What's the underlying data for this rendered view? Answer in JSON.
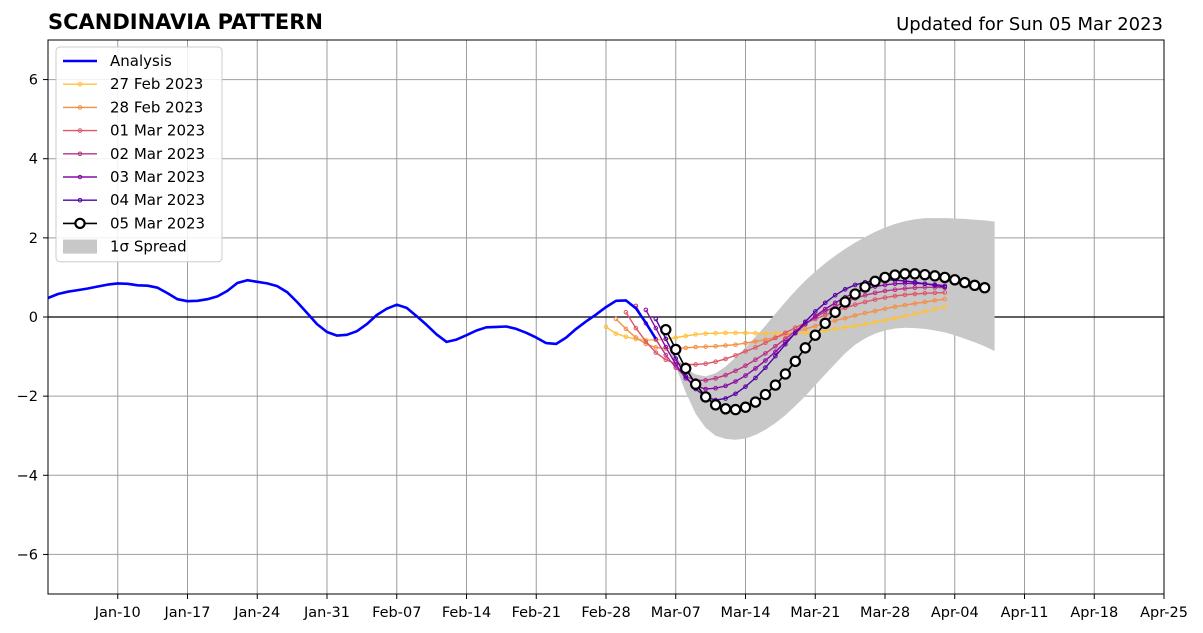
{
  "chart_data": {
    "type": "line",
    "title": "SCANDINAVIA PATTERN",
    "subtitle": "Updated for Sun 05 Mar 2023",
    "xlabel": "",
    "ylabel": "",
    "xlim": [
      "2023-01-03",
      "2023-04-25"
    ],
    "ylim": [
      -7,
      7
    ],
    "grid": true,
    "legend_position": "top-left",
    "x_ticks": [
      "2023-01-10",
      "2023-01-17",
      "2023-01-24",
      "2023-01-31",
      "2023-02-07",
      "2023-02-14",
      "2023-02-21",
      "2023-02-28",
      "2023-03-07",
      "2023-03-14",
      "2023-03-21",
      "2023-03-28",
      "2023-04-04",
      "2023-04-11",
      "2023-04-18",
      "2023-04-25"
    ],
    "x_tick_labels": [
      "Jan-10",
      "Jan-17",
      "Jan-24",
      "Jan-31",
      "Feb-07",
      "Feb-14",
      "Feb-21",
      "Feb-28",
      "Mar-07",
      "Mar-14",
      "Mar-21",
      "Mar-28",
      "Apr-04",
      "Apr-11",
      "Apr-18",
      "Apr-25"
    ],
    "y_ticks": [
      -6,
      -4,
      -2,
      0,
      2,
      4,
      6
    ],
    "y_tick_labels": [
      "−6",
      "−4",
      "−2",
      "0",
      "2",
      "4",
      "6"
    ],
    "analysis": {
      "name": "Analysis",
      "color": "#0000ff",
      "x": [
        "2023-01-03",
        "2023-01-04",
        "2023-01-05",
        "2023-01-06",
        "2023-01-07",
        "2023-01-08",
        "2023-01-09",
        "2023-01-10",
        "2023-01-11",
        "2023-01-12",
        "2023-01-13",
        "2023-01-14",
        "2023-01-15",
        "2023-01-16",
        "2023-01-17",
        "2023-01-18",
        "2023-01-19",
        "2023-01-20",
        "2023-01-21",
        "2023-01-22",
        "2023-01-23",
        "2023-01-24",
        "2023-01-25",
        "2023-01-26",
        "2023-01-27",
        "2023-01-28",
        "2023-01-29",
        "2023-01-30",
        "2023-01-31",
        "2023-02-01",
        "2023-02-02",
        "2023-02-03",
        "2023-02-04",
        "2023-02-05",
        "2023-02-06",
        "2023-02-07",
        "2023-02-08",
        "2023-02-09",
        "2023-02-10",
        "2023-02-11",
        "2023-02-12",
        "2023-02-13",
        "2023-02-14",
        "2023-02-15",
        "2023-02-16",
        "2023-02-17",
        "2023-02-18",
        "2023-02-19",
        "2023-02-20",
        "2023-02-21",
        "2023-02-22",
        "2023-02-23",
        "2023-02-24",
        "2023-02-25",
        "2023-02-26",
        "2023-02-27",
        "2023-02-28",
        "2023-03-01",
        "2023-03-02",
        "2023-03-03",
        "2023-03-04",
        "2023-03-05"
      ],
      "values": [
        0.48,
        0.58,
        0.64,
        0.68,
        0.72,
        0.77,
        0.82,
        0.85,
        0.84,
        0.8,
        0.79,
        0.74,
        0.6,
        0.45,
        0.4,
        0.41,
        0.45,
        0.52,
        0.66,
        0.86,
        0.93,
        0.89,
        0.85,
        0.78,
        0.63,
        0.38,
        0.1,
        -0.18,
        -0.38,
        -0.47,
        -0.45,
        -0.36,
        -0.18,
        0.05,
        0.21,
        0.31,
        0.23,
        0.02,
        -0.2,
        -0.44,
        -0.63,
        -0.57,
        -0.46,
        -0.34,
        -0.26,
        -0.25,
        -0.24,
        -0.3,
        -0.4,
        -0.52,
        -0.66,
        -0.68,
        -0.52,
        -0.3,
        -0.11,
        0.06,
        0.25,
        0.41,
        0.42,
        0.22,
        -0.15,
        -0.55
      ]
    },
    "forecasts": [
      {
        "name": "27 Feb 2023",
        "color": "#ffc13b",
        "x_start": "2023-02-28",
        "values": [
          -0.25,
          -0.42,
          -0.5,
          -0.56,
          -0.58,
          -0.58,
          -0.56,
          -0.52,
          -0.48,
          -0.44,
          -0.42,
          -0.41,
          -0.4,
          -0.4,
          -0.4,
          -0.41,
          -0.42,
          -0.42,
          -0.42,
          -0.41,
          -0.4,
          -0.37,
          -0.34,
          -0.3,
          -0.26,
          -0.22,
          -0.18,
          -0.13,
          -0.08,
          -0.03,
          0.02,
          0.08,
          0.14,
          0.2,
          0.25
        ]
      },
      {
        "name": "28 Feb 2023",
        "color": "#f68f46",
        "x_start": "2023-03-01",
        "values": [
          -0.05,
          -0.3,
          -0.52,
          -0.68,
          -0.77,
          -0.8,
          -0.79,
          -0.78,
          -0.76,
          -0.75,
          -0.74,
          -0.72,
          -0.7,
          -0.66,
          -0.62,
          -0.57,
          -0.52,
          -0.45,
          -0.38,
          -0.3,
          -0.23,
          -0.16,
          -0.09,
          -0.03,
          0.04,
          0.1,
          0.15,
          0.21,
          0.26,
          0.3,
          0.34,
          0.38,
          0.42,
          0.45
        ]
      },
      {
        "name": "01 Mar 2023",
        "color": "#de5769",
        "x_start": "2023-03-02",
        "values": [
          0.12,
          -0.28,
          -0.62,
          -0.9,
          -1.08,
          -1.18,
          -1.2,
          -1.2,
          -1.18,
          -1.13,
          -1.06,
          -0.97,
          -0.87,
          -0.77,
          -0.65,
          -0.53,
          -0.4,
          -0.27,
          -0.15,
          -0.05,
          0.05,
          0.15,
          0.23,
          0.31,
          0.38,
          0.44,
          0.49,
          0.53,
          0.56,
          0.58,
          0.6,
          0.61,
          0.62
        ]
      },
      {
        "name": "02 Mar 2023",
        "color": "#b83289",
        "x_start": "2023-03-03",
        "values": [
          0.28,
          -0.16,
          -0.56,
          -0.96,
          -1.28,
          -1.5,
          -1.6,
          -1.6,
          -1.55,
          -1.47,
          -1.36,
          -1.23,
          -1.08,
          -0.92,
          -0.74,
          -0.55,
          -0.36,
          -0.18,
          -0.01,
          0.14,
          0.27,
          0.38,
          0.47,
          0.55,
          0.61,
          0.66,
          0.69,
          0.72,
          0.74,
          0.75,
          0.75,
          0.74
        ]
      },
      {
        "name": "03 Mar 2023",
        "color": "#8b0aa5",
        "x_start": "2023-03-04",
        "values": [
          0.18,
          -0.28,
          -0.76,
          -1.2,
          -1.55,
          -1.74,
          -1.82,
          -1.8,
          -1.74,
          -1.63,
          -1.48,
          -1.3,
          -1.1,
          -0.88,
          -0.64,
          -0.41,
          -0.18,
          0.02,
          0.2,
          0.36,
          0.5,
          0.61,
          0.7,
          0.77,
          0.81,
          0.84,
          0.85,
          0.85,
          0.84,
          0.82,
          0.79
        ]
      },
      {
        "name": "04 Mar 2023",
        "color": "#5302a3",
        "x_start": "2023-03-05",
        "values": [
          -0.05,
          -0.55,
          -1.05,
          -1.5,
          -1.82,
          -2.02,
          -2.1,
          -2.06,
          -1.94,
          -1.76,
          -1.54,
          -1.28,
          -0.99,
          -0.69,
          -0.4,
          -0.12,
          0.14,
          0.36,
          0.55,
          0.7,
          0.81,
          0.88,
          0.92,
          0.94,
          0.93,
          0.91,
          0.88,
          0.84,
          0.8,
          0.76
        ]
      }
    ],
    "current": {
      "name": "05 Mar 2023",
      "marker_fill": "#ffffff",
      "color": "#000000",
      "x_start": "2023-03-06",
      "values": [
        -0.32,
        -0.82,
        -1.3,
        -1.7,
        -2.02,
        -2.22,
        -2.32,
        -2.34,
        -2.28,
        -2.15,
        -1.96,
        -1.72,
        -1.44,
        -1.12,
        -0.78,
        -0.46,
        -0.16,
        0.12,
        0.38,
        0.58,
        0.76,
        0.9,
        1.0,
        1.06,
        1.09,
        1.09,
        1.07,
        1.04,
        1.0,
        0.94,
        0.87,
        0.8,
        0.74
      ]
    },
    "spread": {
      "name": "1σ Spread",
      "color": "#c8c8c8",
      "x_start": "2023-03-05",
      "upper": [
        -0.05,
        -0.5,
        -1.0,
        -1.3,
        -1.45,
        -1.5,
        -1.42,
        -1.25,
        -1.02,
        -0.77,
        -0.5,
        -0.22,
        0.08,
        0.38,
        0.66,
        0.92,
        1.15,
        1.36,
        1.55,
        1.72,
        1.88,
        2.02,
        2.15,
        2.26,
        2.35,
        2.42,
        2.47,
        2.5,
        2.5,
        2.5,
        2.49,
        2.48,
        2.46,
        2.44,
        2.41
      ],
      "lower": [
        -0.05,
        -0.6,
        -1.25,
        -1.9,
        -2.45,
        -2.8,
        -3.0,
        -3.08,
        -3.1,
        -3.07,
        -2.98,
        -2.85,
        -2.68,
        -2.48,
        -2.25,
        -2.0,
        -1.72,
        -1.45,
        -1.18,
        -0.92,
        -0.7,
        -0.54,
        -0.42,
        -0.34,
        -0.29,
        -0.27,
        -0.28,
        -0.3,
        -0.34,
        -0.39,
        -0.46,
        -0.55,
        -0.64,
        -0.74,
        -0.86
      ]
    },
    "colors": {
      "grid": "#9e9e9e",
      "zero_line": "#000000"
    }
  }
}
